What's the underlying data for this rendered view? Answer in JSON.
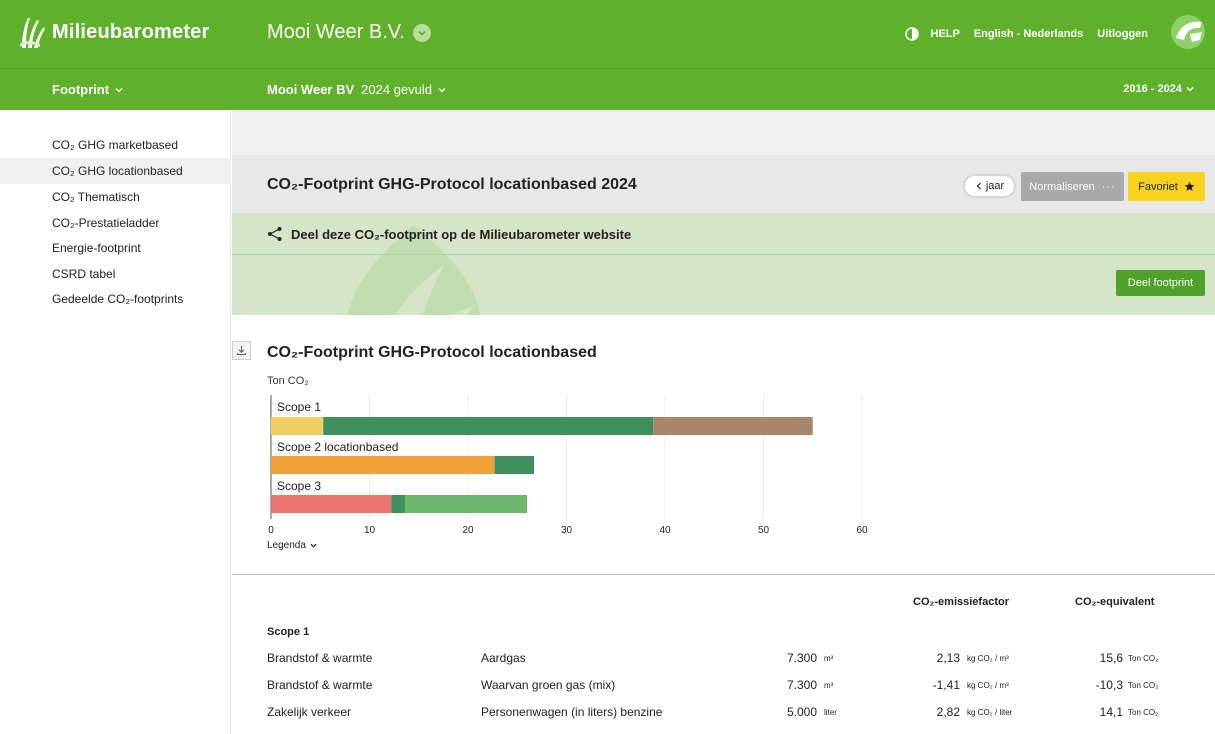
{
  "header": {
    "brand": "Milieubarometer",
    "company": "Mooi Weer B.V.",
    "help": "HELP",
    "lang_en": "English",
    "lang_sep": " - ",
    "lang_nl": "Nederlands",
    "logout": "Uitloggen"
  },
  "subbar": {
    "menu": "Footprint",
    "org_name": "Mooi Weer BV",
    "org_status": "2024 gevuld",
    "years": "2016 - 2024"
  },
  "sidebar": {
    "items": [
      {
        "label": "CO₂ GHG marketbased"
      },
      {
        "label": "CO₂ GHG locationbased"
      },
      {
        "label": "CO₂ Thematisch"
      },
      {
        "label": "CO₂-Prestatieladder"
      },
      {
        "label": "Energie-footprint"
      },
      {
        "label": "CSRD tabel"
      },
      {
        "label": "Gedeelde CO₂-footprints"
      }
    ]
  },
  "page": {
    "title": "CO₂-Footprint GHG-Protocol locationbased 2024",
    "btn_year": "jaar",
    "btn_normalize": "Normaliseren",
    "btn_favorite": "Favoriet"
  },
  "share": {
    "text": "Deel deze CO₂-footprint op de Milieubarometer website",
    "button": "Deel footprint"
  },
  "chart_section": {
    "title": "CO₂-Footprint GHG-Protocol locationbased",
    "unit": "Ton CO₂",
    "legend_toggle": "Legenda"
  },
  "chart_data": {
    "type": "bar",
    "orientation": "horizontal",
    "stacked": true,
    "ylabel": "Ton CO₂",
    "xlim": [
      0,
      60
    ],
    "ticks": [
      0,
      10,
      20,
      30,
      40,
      50,
      60
    ],
    "grid": true,
    "categories": [
      "Scope 1",
      "Scope 2 locationbased",
      "Scope 3"
    ],
    "bars": [
      {
        "category": "Scope 1",
        "segments": [
          {
            "value": 5.3,
            "color": "#f0cf62"
          },
          {
            "value": 33.5,
            "color": "#3f8f5f"
          },
          {
            "value": 16.2,
            "color": "#a9856c"
          }
        ]
      },
      {
        "category": "Scope 2 locationbased",
        "segments": [
          {
            "value": 22.7,
            "color": "#f3a23a"
          },
          {
            "value": 4.0,
            "color": "#3f8f5f"
          }
        ]
      },
      {
        "category": "Scope 3",
        "segments": [
          {
            "value": 12.2,
            "color": "#eb7470"
          },
          {
            "value": 1.4,
            "color": "#3f8f5f"
          },
          {
            "value": 12.4,
            "color": "#6cb86c"
          }
        ]
      }
    ]
  },
  "table": {
    "col_factor": "CO₂-emissiefactor",
    "col_equiv": "CO₂-equivalent",
    "scope1_label": "Scope 1",
    "rows": [
      {
        "cat": "Brandstof & warmte",
        "sub": "Aardgas",
        "qty": "7.300",
        "unit": "m³",
        "factor": "2,13",
        "factor_unit": "kg CO₂ / m³",
        "equiv": "15,6",
        "equiv_unit": "Ton CO₂"
      },
      {
        "cat": "Brandstof & warmte",
        "sub": "Waarvan groen gas (mix)",
        "qty": "7.300",
        "unit": "m³",
        "factor": "-1,41",
        "factor_unit": "kg CO₂ / m³",
        "equiv": "-10,3",
        "equiv_unit": "Ton CO₂"
      },
      {
        "cat": "Zakelijk verkeer",
        "sub": "Personenwagen (in liters) benzine",
        "qty": "5.000",
        "unit": "liter",
        "factor": "2,82",
        "factor_unit": "kg CO₂ / liter",
        "equiv": "14,1",
        "equiv_unit": "Ton CO₂"
      }
    ]
  }
}
